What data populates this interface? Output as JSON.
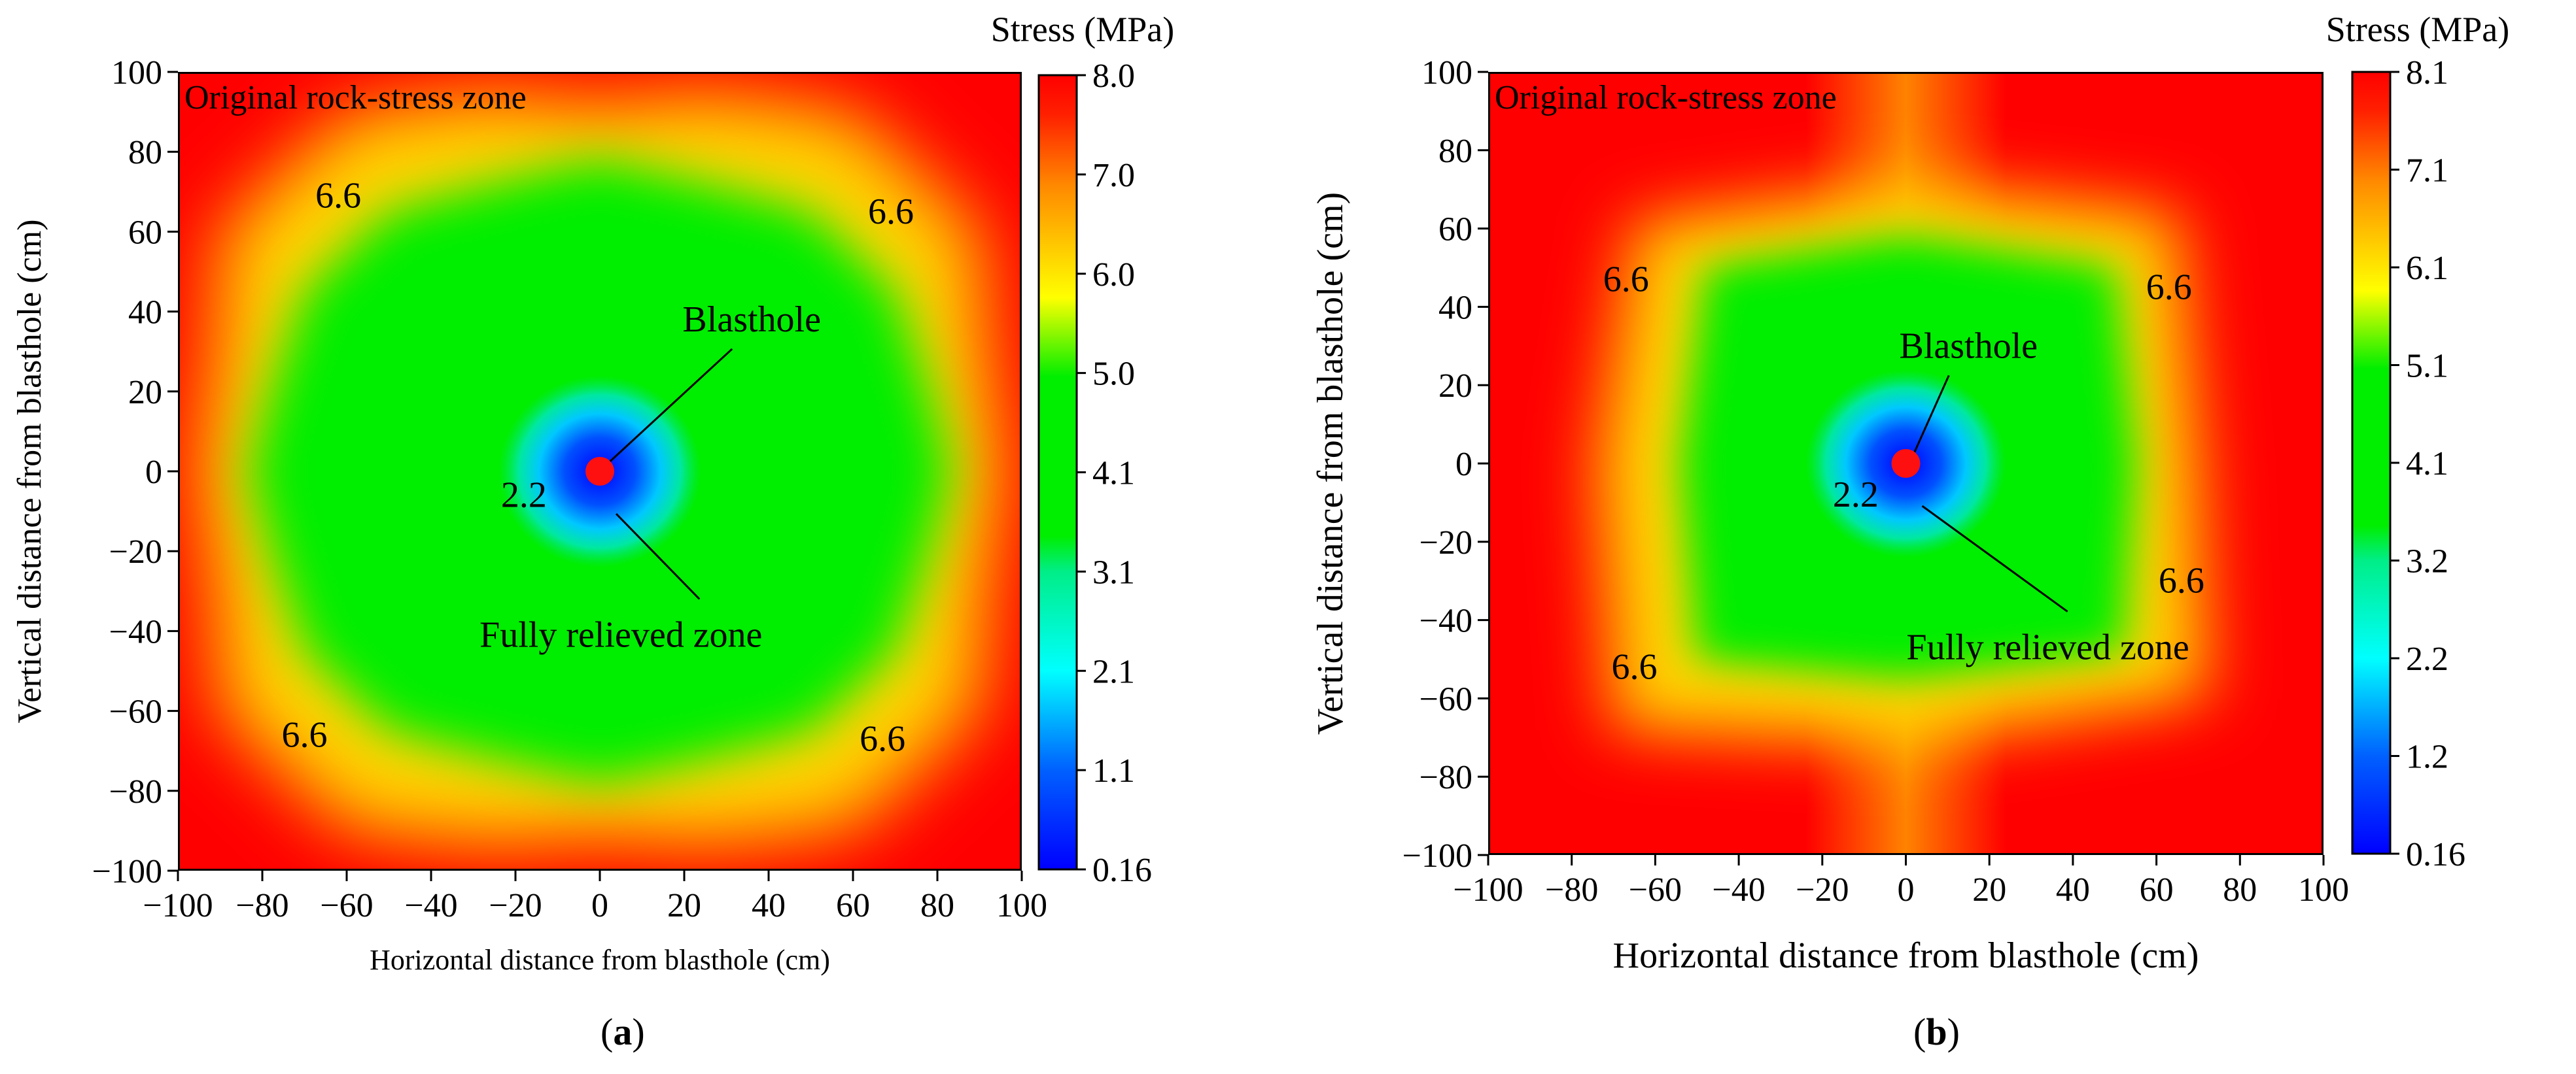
{
  "panels": [
    {
      "id": "a",
      "label": "a",
      "chart_data": {
        "type": "heatmap",
        "title": "",
        "xlabel": "Horizontal distance from blasthole (cm)",
        "ylabel": "Vertical distance from blasthole (cm)",
        "xlim": [
          -100,
          100
        ],
        "ylim": [
          -100,
          100
        ],
        "xticks": [
          -100,
          -80,
          -60,
          -40,
          -20,
          0,
          20,
          40,
          60,
          80,
          100
        ],
        "yticks": [
          -100,
          -80,
          -60,
          -40,
          -20,
          0,
          20,
          40,
          60,
          80,
          100
        ],
        "colorbar": {
          "title": "Stress (MPa)",
          "range": [
            0.16,
            8.0
          ],
          "ticks": [
            "0.16",
            "1.1",
            "2.1",
            "3.1",
            "4.1",
            "5.0",
            "6.0",
            "7.0",
            "8.0"
          ]
        },
        "zone_label": "Original rock-stress zone",
        "contour_labels": [
          {
            "text": "6.6",
            "x": -62,
            "y": 69
          },
          {
            "text": "6.6",
            "x": 69,
            "y": 65
          },
          {
            "text": "6.6",
            "x": -70,
            "y": -66
          },
          {
            "text": "6.6",
            "x": 67,
            "y": -67
          },
          {
            "text": "2.2",
            "x": -18,
            "y": -6
          }
        ],
        "annotations": [
          {
            "text": "Blasthole",
            "x": 36,
            "y": 38
          },
          {
            "text": "Fully relieved zone",
            "x": 5,
            "y": -41
          }
        ],
        "blasthole": {
          "x": 0,
          "y": 0
        },
        "stress_levels": {
          "center_min": 0.16,
          "relieved_zone_ring": 2.2,
          "green_plateau": 4.6,
          "yellow_band": 6.6,
          "original_rock": 8.0
        }
      }
    },
    {
      "id": "b",
      "label": "b",
      "chart_data": {
        "type": "heatmap",
        "title": "",
        "xlabel": "Horizontal distance from blasthole (cm)",
        "ylabel": "Vertical distance from blasthole (cm)",
        "xlim": [
          -100,
          100
        ],
        "ylim": [
          -100,
          100
        ],
        "xticks": [
          -100,
          -80,
          -60,
          -40,
          -20,
          0,
          20,
          40,
          60,
          80,
          100
        ],
        "yticks": [
          -100,
          -80,
          -60,
          -40,
          -20,
          0,
          20,
          40,
          60,
          80,
          100
        ],
        "colorbar": {
          "title": "Stress (MPa)",
          "range": [
            0.16,
            8.1
          ],
          "ticks": [
            "0.16",
            "1.2",
            "2.2",
            "3.2",
            "4.1",
            "5.1",
            "6.1",
            "7.1",
            "8.1"
          ]
        },
        "zone_label": "Original rock-stress zone",
        "contour_labels": [
          {
            "text": "6.6",
            "x": -67,
            "y": 47
          },
          {
            "text": "6.6",
            "x": 63,
            "y": 45
          },
          {
            "text": "6.6",
            "x": 66,
            "y": -30
          },
          {
            "text": "6.6",
            "x": -65,
            "y": -52
          },
          {
            "text": "2.2",
            "x": -12,
            "y": -8
          }
        ],
        "annotations": [
          {
            "text": "Blasthole",
            "x": 15,
            "y": 30
          },
          {
            "text": "Fully relieved zone",
            "x": 34,
            "y": -47
          }
        ],
        "blasthole": {
          "x": 0,
          "y": 0
        },
        "stress_levels": {
          "center_min": 0.16,
          "relieved_zone_ring": 2.2,
          "green_plateau": 4.6,
          "yellow_band": 6.6,
          "original_rock": 8.1
        }
      }
    }
  ]
}
